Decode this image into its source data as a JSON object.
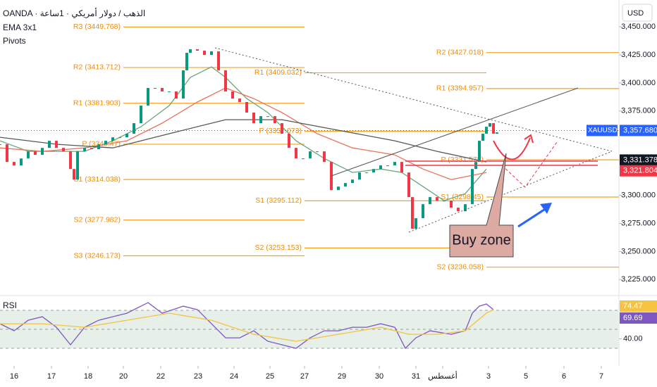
{
  "header": {
    "symbol": "OANDA · الذهب / دولار أمريكي · 1ساعة",
    "study1": "EMA 3x1",
    "study2": "Pivots",
    "currency": "USD"
  },
  "annotation": "Buy zone",
  "chart_data": [
    {
      "type": "candlestick",
      "name": "XAUUSD",
      "x": [
        0,
        10,
        20,
        30,
        40,
        50,
        60,
        70,
        80,
        90,
        100,
        105,
        110,
        120,
        130,
        140,
        150,
        160,
        170,
        180,
        190,
        200,
        210,
        220,
        230,
        240,
        250,
        260,
        265,
        270,
        280,
        290,
        300,
        310,
        320,
        330,
        340,
        350,
        360,
        370,
        380,
        390,
        400,
        410,
        420,
        430,
        440,
        450,
        460,
        470,
        480,
        490,
        500,
        510,
        520,
        530,
        540,
        550,
        560,
        570,
        580,
        585,
        590,
        600,
        610,
        620,
        630,
        640,
        650,
        660,
        670,
        675,
        680,
        685,
        690,
        695,
        700,
        705
      ],
      "values": [
        3345.4,
        3329.7,
        3326.6,
        3332.8,
        3339.1,
        3336,
        3342.2,
        3348.5,
        3342.2,
        3339.1,
        3323.4,
        3314,
        3339.1,
        3342.2,
        3341,
        3345.4,
        3348.5,
        3351.6,
        3351.6,
        3354.8,
        3364.2,
        3379.8,
        3395.5,
        3395.5,
        3392.4,
        3392.4,
        3386.1,
        3411.2,
        3426.8,
        3430,
        3428.7,
        3424.9,
        3428.1,
        3411.2,
        3392.4,
        3386.1,
        3383,
        3373.6,
        3364.2,
        3370.4,
        3370.4,
        3364.2,
        3354.8,
        3342.2,
        3332.8,
        3332.8,
        3339.1,
        3339.1,
        3329.7,
        3304.6,
        3307.8,
        3310.9,
        3314,
        3320.3,
        3320.3,
        3323.4,
        3326.6,
        3326.6,
        3329.7,
        3320.3,
        3298.4,
        3270.2,
        3279.6,
        3292.1,
        3298.4,
        3295.2,
        3295.2,
        3289,
        3285.8,
        3292.1,
        3323.4,
        3329.7,
        3348.5,
        3354.8,
        3361,
        3364.2,
        3354.8,
        3356
      ],
      "up_color": "#089981",
      "down_color": "#f23645",
      "ema": [
        {
          "color": "#6aa77a",
          "x": [
            0,
            40,
            80,
            120,
            160,
            200,
            240,
            270,
            300,
            320,
            350,
            380,
            420,
            460,
            500,
            540,
            570,
            600,
            630,
            660,
            690
          ],
          "values": [
            3348.5,
            3339.1,
            3339.1,
            3339.1,
            3348.5,
            3361,
            3379.8,
            3404.9,
            3414.3,
            3404.9,
            3386.1,
            3373.6,
            3348.5,
            3332.8,
            3320.3,
            3323.4,
            3320.3,
            3307.8,
            3295.2,
            3301.5,
            3323.4
          ]
        },
        {
          "color": "#e8735a",
          "x": [
            0,
            60,
            120,
            180,
            230,
            280,
            320,
            360,
            400,
            450,
            500,
            560,
            600,
            640,
            690
          ],
          "values": [
            3342.2,
            3339.1,
            3342.2,
            3348.5,
            3364.2,
            3383,
            3395.5,
            3386.1,
            3373.6,
            3354.8,
            3342.2,
            3336,
            3323.4,
            3314,
            3320.3
          ]
        },
        {
          "color": "#4f5b4f",
          "x": [
            0,
            80,
            160,
            240,
            320,
            400,
            480,
            560,
            620,
            690
          ],
          "values": [
            3351.6,
            3345.4,
            3342.2,
            3354.8,
            3367.3,
            3367.3,
            3357.9,
            3348.5,
            3339.1,
            3329.7
          ]
        }
      ],
      "pivot_color": "#f7a21b",
      "pivots": [
        {
          "label": "R3 (3449.768)",
          "value": 3449.768,
          "x": [
            175,
            432
          ]
        },
        {
          "label": "R2 (3413.712)",
          "value": 3413.712,
          "x": [
            175,
            432
          ]
        },
        {
          "label": "R1 (3381.903)",
          "value": 3381.903,
          "x": [
            175,
            432
          ]
        },
        {
          "label": "P (3345.47)",
          "value": 3345.47,
          "x": [
            175,
            432
          ]
        },
        {
          "label": "S1 (3314.038)",
          "value": 3314.038,
          "x": [
            175,
            432
          ]
        },
        {
          "label": "S2 (3277.982)",
          "value": 3277.982,
          "x": [
            175,
            432
          ]
        },
        {
          "label": "S3 (3246.173)",
          "value": 3246.173,
          "x": [
            175,
            432
          ]
        },
        {
          "label": "R1 (3409.032)",
          "value": 3409.032,
          "x": [
            432,
            690
          ]
        },
        {
          "label": "P (3357.073)",
          "value": 3357.073,
          "x": [
            432,
            690
          ]
        },
        {
          "label": "S1 (3295.112)",
          "value": 3295.112,
          "x": [
            432,
            690
          ]
        },
        {
          "label": "S2 (3253.153)",
          "value": 3253.153,
          "x": [
            432,
            690
          ]
        },
        {
          "label": "R2 (3427.018)",
          "value": 3427.018,
          "x": [
            690,
            878
          ]
        },
        {
          "label": "R1 (3394.957)",
          "value": 3394.957,
          "x": [
            690,
            878
          ]
        },
        {
          "label": "P (3331.578)",
          "value": 3331.578,
          "x": [
            690,
            878
          ]
        },
        {
          "label": "S1 (3298.45)",
          "value": 3298.45,
          "x": [
            690,
            878
          ]
        },
        {
          "label": "S2 (3236.058)",
          "value": 3236.058,
          "x": [
            690,
            878
          ]
        }
      ],
      "price_labels": [
        {
          "name": "XAUUSD",
          "label": "3,357.680",
          "value": 3357.68,
          "color": "#2962ff"
        },
        {
          "label": "3,331.378",
          "value": 3331.378,
          "color": "#131722"
        },
        {
          "label": "3,321.804",
          "value": 3321.804,
          "color": "#f23645"
        }
      ],
      "xlim": [
        0,
        878
      ],
      "ylim": [
        3210.8,
        3473.8
      ],
      "yticks": [
        {
          "value": 3225,
          "label": "3,225.000"
        },
        {
          "value": 3250,
          "label": "3,250.000"
        },
        {
          "value": 3275,
          "label": "3,275.000"
        },
        {
          "value": 3300,
          "label": "3,300.000"
        },
        {
          "value": 3375,
          "label": "3,375.000"
        },
        {
          "value": 3400,
          "label": "3,400.000"
        },
        {
          "value": 3425,
          "label": "3,425.000"
        },
        {
          "value": 3450,
          "label": "3,450.000"
        }
      ],
      "xticks": [
        {
          "value": 20,
          "label": "16"
        },
        {
          "value": 73,
          "label": "17"
        },
        {
          "value": 125,
          "label": "18"
        },
        {
          "value": 175,
          "label": "20"
        },
        {
          "value": 228,
          "label": "22"
        },
        {
          "value": 281,
          "label": "23"
        },
        {
          "value": 332,
          "label": "24"
        },
        {
          "value": 383,
          "label": "25"
        },
        {
          "value": 432,
          "label": "27"
        },
        {
          "value": 485,
          "label": "29"
        },
        {
          "value": 538,
          "label": "30"
        },
        {
          "value": 590,
          "label": "31"
        },
        {
          "value": 628,
          "label": "أغسطس"
        },
        {
          "value": 693,
          "label": "3"
        },
        {
          "value": 746,
          "label": "5"
        },
        {
          "value": 800,
          "label": "6"
        },
        {
          "value": 853,
          "label": "7"
        }
      ]
    },
    {
      "type": "line",
      "title": "RSI",
      "series": [
        {
          "color": "#7e57c2",
          "x": [
            0,
            20,
            40,
            60,
            80,
            100,
            120,
            140,
            160,
            180,
            200,
            210,
            230,
            260,
            280,
            300,
            320,
            340,
            360,
            380,
            400,
            420,
            440,
            460,
            480,
            500,
            520,
            540,
            560,
            575,
            590,
            610,
            640,
            660,
            670,
            680,
            690,
            700
          ],
          "values": [
            55.9,
            48.5,
            59.6,
            63.3,
            52.2,
            33.7,
            52.2,
            59.6,
            63.3,
            67,
            74.4,
            78.1,
            67,
            74.4,
            70.7,
            55.9,
            41.1,
            41.1,
            48.5,
            37.4,
            33.7,
            30,
            41.1,
            48.5,
            48.5,
            52.2,
            52.2,
            55.9,
            52.2,
            30,
            41.1,
            48.5,
            44.8,
            48.5,
            67,
            74.4,
            76.7,
            70.7
          ]
        },
        {
          "color": "#f5c242",
          "x": [
            0,
            60,
            120,
            180,
            240,
            300,
            360,
            420,
            480,
            540,
            580,
            620,
            660,
            690,
            700
          ],
          "values": [
            55.9,
            55.9,
            52.2,
            59.6,
            67,
            59.6,
            44.8,
            37.4,
            44.8,
            52.2,
            44.8,
            44.8,
            48.5,
            67,
            70.7
          ]
        }
      ],
      "bands": [
        70,
        50,
        30
      ],
      "price_labels": [
        {
          "label": "74.47",
          "value": 74.47,
          "color": "#f5c242"
        },
        {
          "label": "69.69",
          "value": 69.69,
          "color": "#7e57c2"
        }
      ],
      "xlim": [
        0,
        878
      ],
      "ylim": [
        11.5,
        85.6
      ],
      "yticks": [
        {
          "value": 40,
          "label": "40.00"
        }
      ]
    }
  ]
}
